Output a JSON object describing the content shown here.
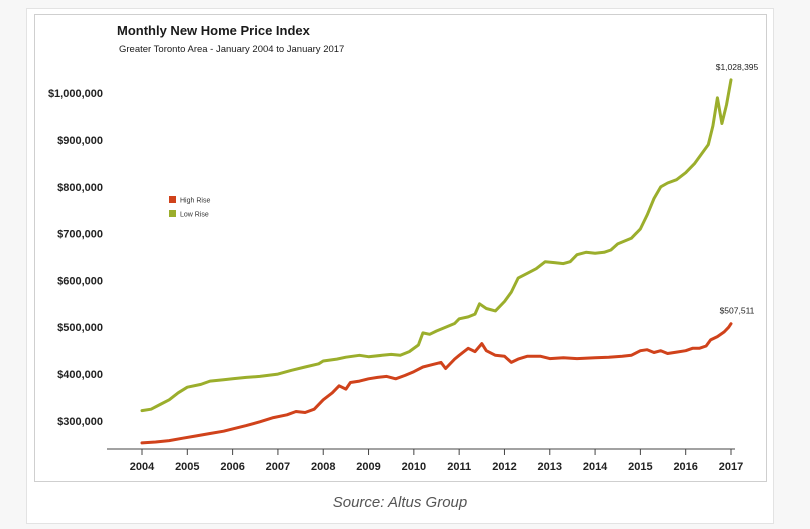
{
  "caption": "Source: Altus Group",
  "chart_data": {
    "type": "line",
    "title": "Monthly New Home Price Index",
    "subtitle": "Greater Toronto Area - January 2004 to January 2017",
    "xlabel": "",
    "ylabel": "",
    "xlim": [
      2004,
      2017
    ],
    "ylim": [
      240000,
      1060000
    ],
    "x_ticks": [
      "2004",
      "2005",
      "2006",
      "2007",
      "2008",
      "2009",
      "2010",
      "2011",
      "2012",
      "2013",
      "2014",
      "2015",
      "2016",
      "2017"
    ],
    "y_ticks": [
      {
        "value": 300000,
        "label": "$300,000"
      },
      {
        "value": 400000,
        "label": "$400,000"
      },
      {
        "value": 500000,
        "label": "$500,000"
      },
      {
        "value": 600000,
        "label": "$600,000"
      },
      {
        "value": 700000,
        "label": "$700,000"
      },
      {
        "value": 800000,
        "label": "$800,000"
      },
      {
        "value": 900000,
        "label": "$900,000"
      },
      {
        "value": 1000000,
        "label": "$1,000,000"
      }
    ],
    "grid": false,
    "legend_position": "upper-left",
    "series": [
      {
        "name": "High Rise",
        "color": "#d0421b",
        "points": [
          [
            2004.0,
            253000
          ],
          [
            2004.3,
            255000
          ],
          [
            2004.6,
            258000
          ],
          [
            2004.9,
            263000
          ],
          [
            2005.2,
            268000
          ],
          [
            2005.5,
            273000
          ],
          [
            2005.8,
            278000
          ],
          [
            2006.0,
            283000
          ],
          [
            2006.3,
            290000
          ],
          [
            2006.6,
            298000
          ],
          [
            2006.9,
            307000
          ],
          [
            2007.2,
            313000
          ],
          [
            2007.4,
            320000
          ],
          [
            2007.6,
            318000
          ],
          [
            2007.8,
            325000
          ],
          [
            2008.0,
            345000
          ],
          [
            2008.2,
            360000
          ],
          [
            2008.35,
            375000
          ],
          [
            2008.5,
            368000
          ],
          [
            2008.6,
            382000
          ],
          [
            2008.8,
            385000
          ],
          [
            2009.0,
            390000
          ],
          [
            2009.2,
            393000
          ],
          [
            2009.4,
            395000
          ],
          [
            2009.6,
            390000
          ],
          [
            2009.8,
            397000
          ],
          [
            2010.0,
            405000
          ],
          [
            2010.2,
            415000
          ],
          [
            2010.4,
            420000
          ],
          [
            2010.6,
            425000
          ],
          [
            2010.7,
            412000
          ],
          [
            2010.9,
            432000
          ],
          [
            2011.0,
            440000
          ],
          [
            2011.2,
            455000
          ],
          [
            2011.35,
            448000
          ],
          [
            2011.5,
            465000
          ],
          [
            2011.6,
            450000
          ],
          [
            2011.8,
            440000
          ],
          [
            2012.0,
            438000
          ],
          [
            2012.15,
            425000
          ],
          [
            2012.3,
            432000
          ],
          [
            2012.5,
            438000
          ],
          [
            2012.8,
            438000
          ],
          [
            2013.0,
            433000
          ],
          [
            2013.3,
            435000
          ],
          [
            2013.6,
            433000
          ],
          [
            2014.0,
            435000
          ],
          [
            2014.3,
            436000
          ],
          [
            2014.6,
            438000
          ],
          [
            2014.8,
            440000
          ],
          [
            2015.0,
            450000
          ],
          [
            2015.15,
            452000
          ],
          [
            2015.3,
            446000
          ],
          [
            2015.45,
            450000
          ],
          [
            2015.6,
            444000
          ],
          [
            2015.8,
            447000
          ],
          [
            2016.0,
            450000
          ],
          [
            2016.15,
            455000
          ],
          [
            2016.3,
            455000
          ],
          [
            2016.45,
            460000
          ],
          [
            2016.55,
            473000
          ],
          [
            2016.7,
            480000
          ],
          [
            2016.85,
            490000
          ],
          [
            2016.95,
            500000
          ],
          [
            2017.0,
            507511
          ]
        ],
        "end_label": "$507,511"
      },
      {
        "name": "Low Rise",
        "color": "#9bae2c",
        "points": [
          [
            2004.0,
            322000
          ],
          [
            2004.2,
            325000
          ],
          [
            2004.4,
            335000
          ],
          [
            2004.6,
            345000
          ],
          [
            2004.8,
            360000
          ],
          [
            2005.0,
            372000
          ],
          [
            2005.3,
            378000
          ],
          [
            2005.5,
            385000
          ],
          [
            2005.8,
            388000
          ],
          [
            2006.0,
            390000
          ],
          [
            2006.3,
            393000
          ],
          [
            2006.6,
            395000
          ],
          [
            2007.0,
            400000
          ],
          [
            2007.3,
            408000
          ],
          [
            2007.6,
            415000
          ],
          [
            2007.9,
            422000
          ],
          [
            2008.0,
            428000
          ],
          [
            2008.3,
            432000
          ],
          [
            2008.5,
            436000
          ],
          [
            2008.8,
            440000
          ],
          [
            2009.0,
            437000
          ],
          [
            2009.3,
            440000
          ],
          [
            2009.5,
            442000
          ],
          [
            2009.7,
            440000
          ],
          [
            2009.9,
            448000
          ],
          [
            2010.1,
            462000
          ],
          [
            2010.2,
            488000
          ],
          [
            2010.35,
            485000
          ],
          [
            2010.5,
            492000
          ],
          [
            2010.7,
            500000
          ],
          [
            2010.9,
            508000
          ],
          [
            2011.0,
            518000
          ],
          [
            2011.2,
            522000
          ],
          [
            2011.35,
            528000
          ],
          [
            2011.45,
            550000
          ],
          [
            2011.6,
            540000
          ],
          [
            2011.8,
            535000
          ],
          [
            2012.0,
            555000
          ],
          [
            2012.15,
            575000
          ],
          [
            2012.3,
            605000
          ],
          [
            2012.5,
            615000
          ],
          [
            2012.7,
            625000
          ],
          [
            2012.9,
            640000
          ],
          [
            2013.1,
            638000
          ],
          [
            2013.3,
            636000
          ],
          [
            2013.45,
            640000
          ],
          [
            2013.6,
            655000
          ],
          [
            2013.8,
            660000
          ],
          [
            2014.0,
            658000
          ],
          [
            2014.2,
            660000
          ],
          [
            2014.35,
            665000
          ],
          [
            2014.5,
            678000
          ],
          [
            2014.8,
            690000
          ],
          [
            2015.0,
            710000
          ],
          [
            2015.15,
            740000
          ],
          [
            2015.3,
            775000
          ],
          [
            2015.45,
            800000
          ],
          [
            2015.6,
            808000
          ],
          [
            2015.8,
            815000
          ],
          [
            2016.0,
            830000
          ],
          [
            2016.2,
            850000
          ],
          [
            2016.35,
            870000
          ],
          [
            2016.5,
            890000
          ],
          [
            2016.6,
            930000
          ],
          [
            2016.7,
            990000
          ],
          [
            2016.8,
            935000
          ],
          [
            2016.9,
            975000
          ],
          [
            2017.0,
            1028395
          ]
        ],
        "end_label": "$1,028,395"
      }
    ]
  }
}
